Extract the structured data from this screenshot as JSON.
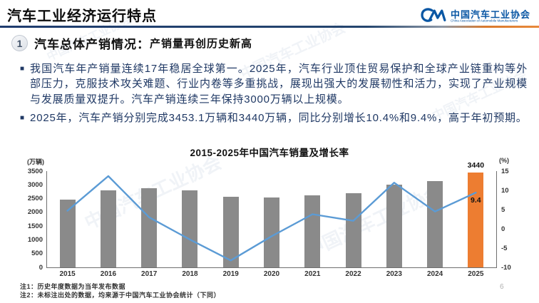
{
  "header": {
    "title": "汽车工业经济运行特点",
    "logo": {
      "org_cn": "中国汽车工业协会",
      "org_en": "China Association of Automobile Manufacturers"
    }
  },
  "section": {
    "number": "1",
    "title": "汽车总体产销情况：",
    "subtitle": "产销量再创历史新高"
  },
  "bullets": [
    {
      "text": "我国汽车年产销量连续17年稳居全球第一。2025年，汽车行业顶住贸易保护和全球产业链重构等外部压力，克服技术攻关难题、行业内卷等多重挑战，展现出强大的发展韧性和活力，实现了产业规模与发展质量双提升。汽车产销连续三年保持3000万辆以上规模。"
    },
    {
      "text": "2025年，汽车产销分别完成3453.1万辆和3440万辆，同比分别增长10.4%和9.4%，高于年初预期。"
    }
  ],
  "chart_data": {
    "type": "bar",
    "subtype": "bar+line combo, dual axis",
    "title": "2015-2025年中国汽车销量及增长率",
    "categories": [
      "2015",
      "2016",
      "2017",
      "2018",
      "2019",
      "2020",
      "2021",
      "2022",
      "2023",
      "2024",
      "2025"
    ],
    "series": [
      {
        "name": "汽车销量(万辆)",
        "type": "bar",
        "values": [
          2460,
          2803,
          2888,
          2808,
          2577,
          2531,
          2628,
          2686,
          3009,
          3144,
          3440
        ],
        "color": "#8a8a8a",
        "highlight": {
          "index": 10,
          "color": "#ED7D31"
        }
      },
      {
        "name": "增长率(%)",
        "type": "line",
        "values": [
          4.7,
          13.7,
          3.0,
          -2.8,
          -8.2,
          -1.9,
          3.8,
          2.1,
          12.0,
          4.5,
          9.4
        ],
        "color": "#5B9BD5"
      }
    ],
    "left_axis": {
      "label": "(万辆)",
      "min": 0,
      "max": 3500,
      "ticks": [
        0,
        500,
        1000,
        1500,
        2000,
        2500,
        3000,
        3500
      ]
    },
    "right_axis": {
      "label": "(%)",
      "min": -10,
      "max": 15,
      "ticks": [
        -10,
        -5,
        0,
        5,
        10,
        15
      ]
    },
    "annotations": [
      {
        "text": "3440",
        "anchor": "bar",
        "index": 10,
        "dy": -15
      },
      {
        "text": "9.4",
        "anchor": "line",
        "index": 10,
        "dy": 6
      }
    ],
    "grid": false,
    "legend": "none"
  },
  "footnotes": [
    "注1：历史年度数据为当年发布数据",
    "注2：未标注出处的数据，均来源于中国汽车工业协会统计（下同）"
  ],
  "page_number": "6",
  "watermark": {
    "text": "中国汽车工业协会"
  },
  "colors": {
    "body_text": "#1F3864",
    "bar_gray": "#8a8a8a",
    "bar_orange": "#ED7D31",
    "line_blue": "#5B9BD5",
    "logo_blue": "#0a57a4",
    "divider_navy": "#1f3c6e",
    "divider_orange": "#e8893b"
  }
}
